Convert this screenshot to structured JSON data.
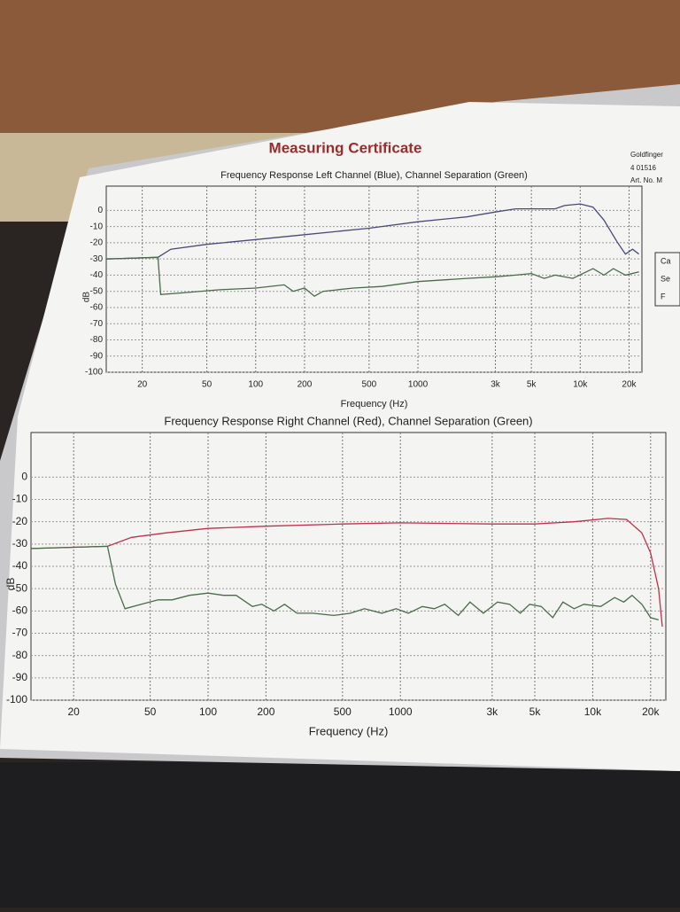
{
  "title": "Measuring Certificate",
  "side_text": [
    "Goldfinger",
    "4 01516",
    "Art. No. M",
    "Ca",
    "Se",
    "F"
  ],
  "chart_data": [
    {
      "type": "line",
      "title": "Frequency Response Left Channel (Blue), Channel Separation (Green)",
      "xlabel": "Frequency (Hz)",
      "ylabel": "dB",
      "log_x": true,
      "grid": true,
      "xlim": [
        12,
        24000
      ],
      "ylim": [
        -100,
        15
      ],
      "xticks": [
        20,
        50,
        100,
        200,
        500,
        1000,
        {
          "value": 3000,
          "label": "3k"
        },
        {
          "value": 5000,
          "label": "5k"
        },
        {
          "value": 10000,
          "label": "10k"
        },
        {
          "value": 20000,
          "label": "20k"
        }
      ],
      "yticks": [
        0,
        -10,
        -20,
        -30,
        -40,
        -50,
        -60,
        -70,
        -80,
        -90,
        -100
      ],
      "series": [
        {
          "color": "#4a4a7a",
          "x": [
            12,
            25,
            30,
            50,
            100,
            200,
            500,
            1000,
            2000,
            3000,
            4000,
            5000,
            7000,
            8000,
            10000,
            12000,
            14000,
            17000,
            19000,
            21000,
            23000
          ],
          "values": [
            -30,
            -29,
            -24,
            -21,
            -18,
            -15,
            -11,
            -7,
            -4,
            -1,
            1,
            1,
            1,
            3,
            4,
            2,
            -6,
            -20,
            -27,
            -24,
            -27
          ]
        },
        {
          "color": "#4a6a4a",
          "x": [
            12,
            25,
            26,
            35,
            60,
            100,
            150,
            170,
            200,
            230,
            260,
            400,
            600,
            1000,
            2000,
            3000,
            4000,
            5000,
            6000,
            7000,
            9000,
            12000,
            14000,
            16000,
            19000,
            23000
          ],
          "values": [
            -30,
            -29,
            -52,
            -51,
            -49,
            -48,
            -46,
            -50,
            -48,
            -53,
            -50,
            -48,
            -47,
            -44,
            -42,
            -41,
            -40,
            -39,
            -42,
            -40,
            -42,
            -36,
            -40,
            -36,
            -40,
            -38
          ]
        }
      ]
    },
    {
      "type": "line",
      "title": "Frequency Response Right Channel (Red), Channel Separation (Green)",
      "xlabel": "Frequency (Hz)",
      "ylabel": "dB",
      "log_x": true,
      "grid": true,
      "xlim": [
        12,
        24000
      ],
      "ylim": [
        -100,
        20
      ],
      "xticks": [
        20,
        50,
        100,
        200,
        500,
        1000,
        {
          "value": 3000,
          "label": "3k"
        },
        {
          "value": 5000,
          "label": "5k"
        },
        {
          "value": 10000,
          "label": "10k"
        },
        {
          "value": 20000,
          "label": "20k"
        }
      ],
      "yticks": [
        0,
        -10,
        -20,
        -30,
        -40,
        -50,
        -60,
        -70,
        -80,
        -90,
        -100
      ],
      "series": [
        {
          "color": "#c0304a",
          "x": [
            12,
            30,
            40,
            60,
            100,
            200,
            500,
            1000,
            3000,
            5000,
            8000,
            12000,
            15000,
            18000,
            20000,
            22000,
            23000
          ],
          "values": [
            -32,
            -31,
            -27,
            -25,
            -23,
            -22,
            -21,
            -20.5,
            -21,
            -21,
            -20,
            -18.5,
            -19,
            -25,
            -34,
            -50,
            -67
          ]
        },
        {
          "color": "#4a6a4a",
          "x": [
            12,
            30,
            33,
            37,
            45,
            55,
            65,
            80,
            100,
            120,
            140,
            170,
            190,
            220,
            250,
            290,
            350,
            450,
            550,
            650,
            800,
            950,
            1100,
            1300,
            1500,
            1700,
            2000,
            2300,
            2700,
            3200,
            3700,
            4200,
            4700,
            5400,
            6200,
            7000,
            8000,
            9000,
            11000,
            13000,
            14500,
            16000,
            18000,
            20000,
            22000
          ],
          "values": [
            -32,
            -31,
            -48,
            -59,
            -57,
            -55,
            -55,
            -53,
            -52,
            -53,
            -53,
            -58,
            -57,
            -60,
            -57,
            -61,
            -61,
            -62,
            -61,
            -59,
            -61,
            -59,
            -61,
            -58,
            -59,
            -57,
            -62,
            -56,
            -61,
            -56,
            -57,
            -61,
            -57,
            -58,
            -63,
            -56,
            -59,
            -57,
            -58,
            -54,
            -56,
            -53,
            -57,
            -63,
            -64
          ]
        }
      ]
    }
  ]
}
